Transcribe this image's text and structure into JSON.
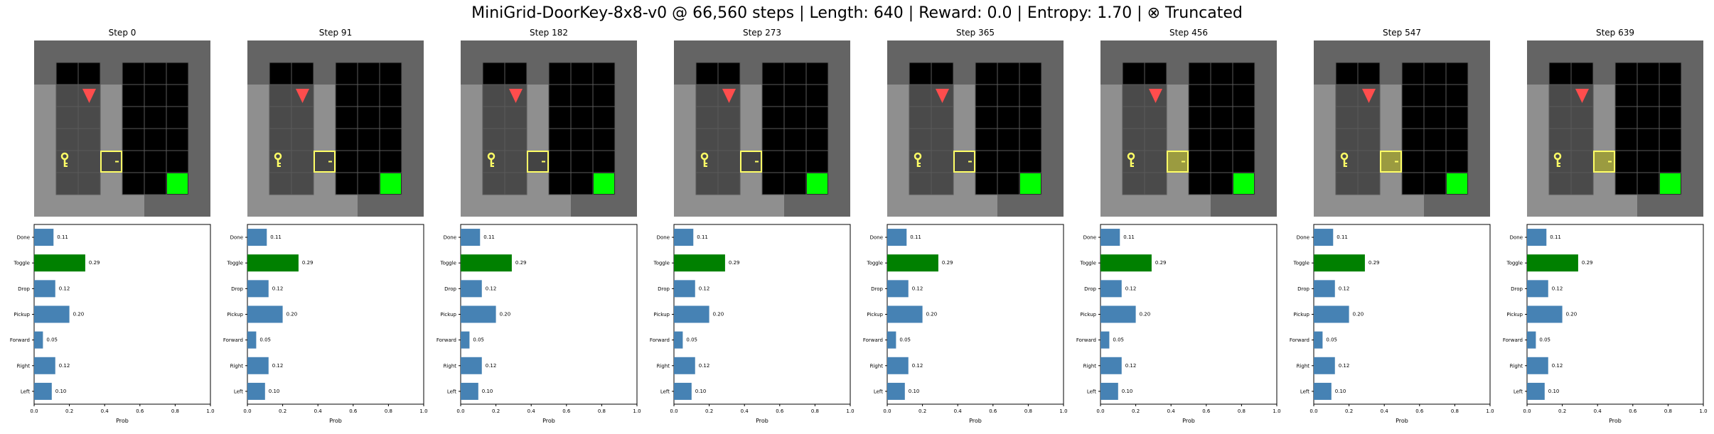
{
  "figure": {
    "title": "MiniGrid-DoorKey-8x8-v0 @ 66,560 steps | Length: 640 | Reward: 0.0 | Entropy: 1.70 | ⊗ Truncated"
  },
  "colors": {
    "wall": "#646464",
    "floor_visible": "#8f8f8f",
    "floor_dark": "#000000",
    "grid_line": "#5a5a5a",
    "agent": "#ff4d4d",
    "key": "#ffff66",
    "door_border": "#ffff66",
    "door_fill_closed": "#444444",
    "door_fill_dim": "#9b9b40",
    "goal": "#00ff00",
    "bar_default": "#4682b4",
    "bar_highlight": "#008000"
  },
  "panels": [
    {
      "step_label": "Step 0",
      "door_dim": false
    },
    {
      "step_label": "Step 91",
      "door_dim": false
    },
    {
      "step_label": "Step 182",
      "door_dim": false
    },
    {
      "step_label": "Step 273",
      "door_dim": false
    },
    {
      "step_label": "Step 365",
      "door_dim": false
    },
    {
      "step_label": "Step 456",
      "door_dim": true
    },
    {
      "step_label": "Step 547",
      "door_dim": true
    },
    {
      "step_label": "Step 639",
      "door_dim": true
    }
  ],
  "chart_data": {
    "type": "bar",
    "orientation": "horizontal",
    "categories": [
      "Left",
      "Right",
      "Forward",
      "Pickup",
      "Drop",
      "Toggle",
      "Done"
    ],
    "values": [
      0.1,
      0.12,
      0.05,
      0.2,
      0.12,
      0.29,
      0.11
    ],
    "value_labels": [
      "0.10",
      "0.12",
      "0.05",
      "0.20",
      "0.12",
      "0.29",
      "0.11"
    ],
    "highlight_category": "Toggle",
    "xlabel": "Prob",
    "ylabel": "",
    "xlim": [
      0,
      1.0
    ],
    "xticks": [
      "0.0",
      "0.2",
      "0.4",
      "0.6",
      "0.8",
      "1.0"
    ],
    "grid": false,
    "repeated_panels": 8
  }
}
